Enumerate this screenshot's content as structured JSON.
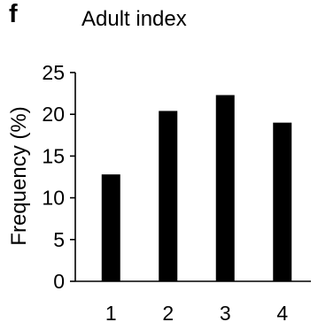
{
  "panel_label": "f",
  "chart_data": {
    "type": "bar",
    "title": "Adult index",
    "categories": [
      "1",
      "2",
      "3",
      "4"
    ],
    "values": [
      12.8,
      20.4,
      22.3,
      19.0
    ],
    "ylabel": "Frequency (%)",
    "xlabel": "",
    "ylim": [
      0,
      25
    ],
    "yticks": [
      0,
      5,
      10,
      15,
      20,
      25
    ],
    "grid": false,
    "bar_color": "#000000"
  }
}
